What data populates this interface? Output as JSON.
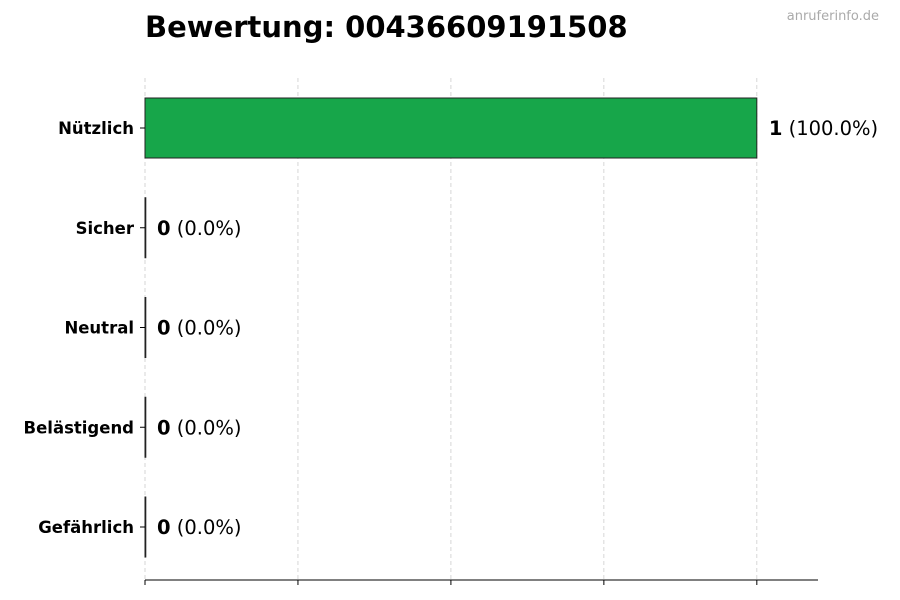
{
  "watermark": "anruferinfo.de",
  "chart_data": {
    "type": "bar",
    "orientation": "horizontal",
    "title": "Bewertung: 00436609191508",
    "categories": [
      "Nützlich",
      "Sicher",
      "Neutral",
      "Belästigend",
      "Gefährlich"
    ],
    "values": [
      1,
      0,
      0,
      0,
      0
    ],
    "data_labels": [
      {
        "count": "1",
        "percent": "(100.0%)"
      },
      {
        "count": "0",
        "percent": "(0.0%)"
      },
      {
        "count": "0",
        "percent": "(0.0%)"
      },
      {
        "count": "0",
        "percent": "(0.0%)"
      },
      {
        "count": "0",
        "percent": "(0.0%)"
      }
    ],
    "xlim": [
      0,
      1.1
    ],
    "xticks": [
      0,
      0.25,
      0.5,
      0.75,
      1.0
    ],
    "xtick_labels_shown": false,
    "grid": "vertical dashed",
    "bar_color": "#17a64a",
    "xlabel": "",
    "ylabel": ""
  }
}
